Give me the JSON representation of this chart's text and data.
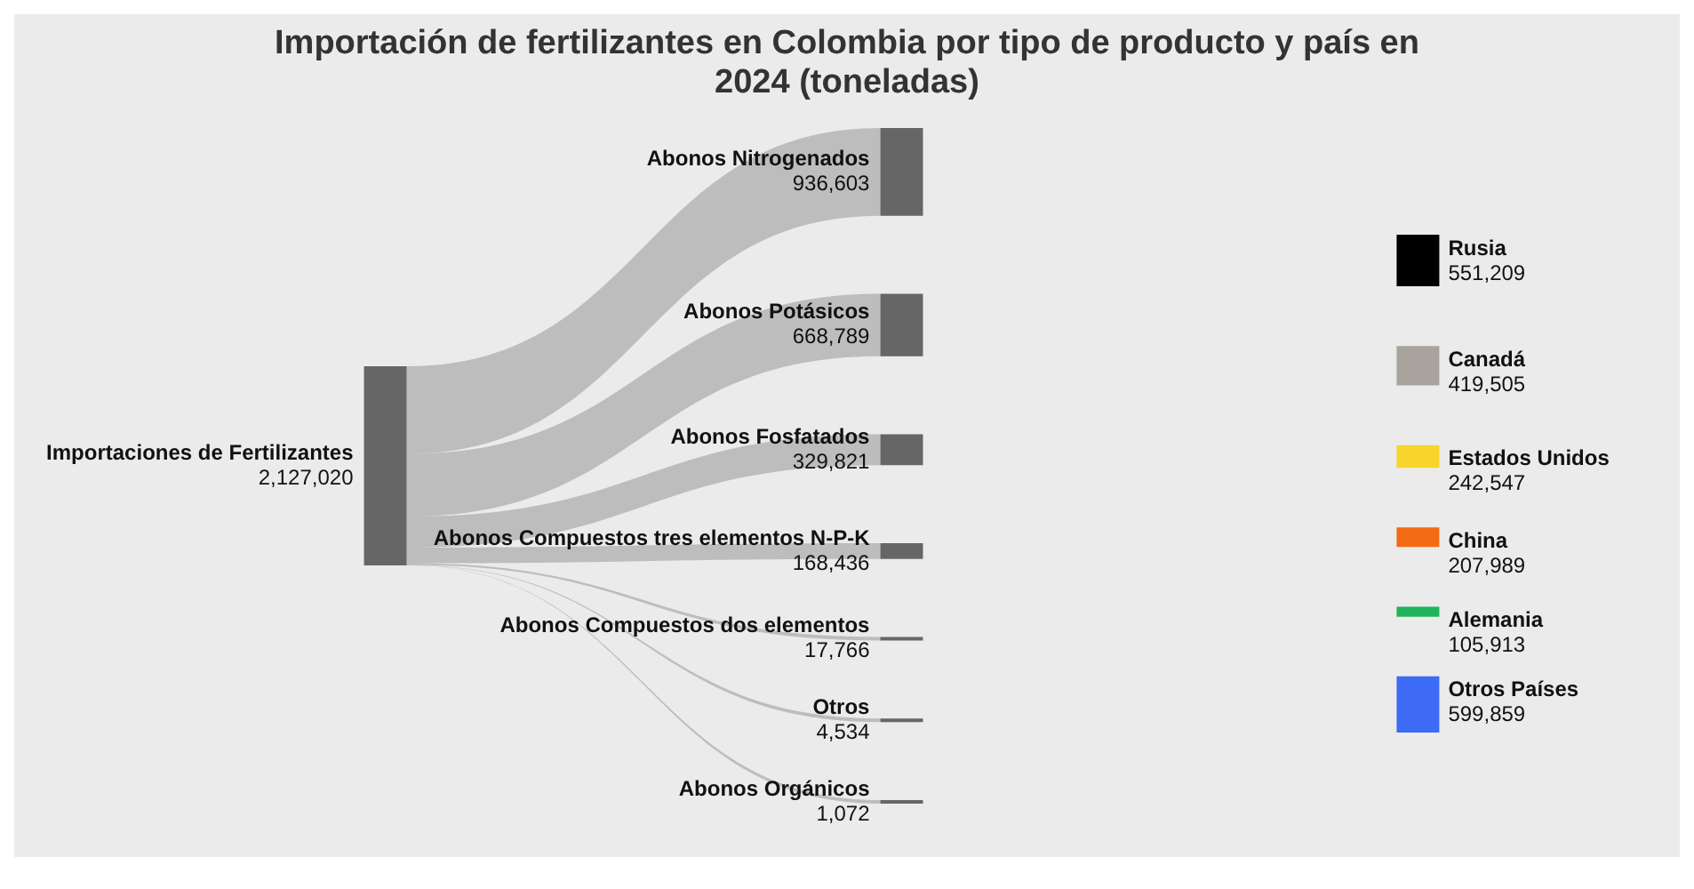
{
  "chart_data": {
    "type": "other",
    "title": "Importación de fertilizantes en Colombia por tipo de producto y país en 2024 (toneladas)",
    "categories": [
      "Importaciones de Fertilizantes",
      "Abonos Nitrogenados",
      "Abonos Potásicos",
      "Abonos Fosfatados",
      "Abonos Compuestos tres elementos N-P-K",
      "Abonos Compuestos dos elementos",
      "Otros",
      "Abonos Orgánicos",
      "Rusia",
      "Canadá",
      "Estados Unidos",
      "China",
      "Alemania",
      "Otros Países"
    ],
    "series": [
      {
        "color": "#666666",
        "values": [
          2127020,
          null,
          null,
          null,
          null,
          null,
          null,
          null,
          null,
          null,
          null,
          null,
          null,
          null
        ],
        "value_labels": [
          "2,127,020",
          null,
          null,
          null,
          null,
          null,
          null,
          null,
          null,
          null,
          null,
          null,
          null,
          null
        ]
      },
      {
        "color": "#666666",
        "values": [
          null,
          936603,
          668789,
          329821,
          168436,
          17766,
          4534,
          1072,
          null,
          null,
          null,
          null,
          null,
          null
        ],
        "value_labels": [
          null,
          "936,603",
          "668,789",
          "329,821",
          "168,436",
          "17,766",
          "4,534",
          "1,072",
          null,
          null,
          null,
          null,
          null,
          null
        ]
      },
      {
        "colors": [
          null,
          null,
          null,
          null,
          null,
          null,
          null,
          null,
          "#000000",
          "#a8a39d",
          "#f7d52a",
          "#f26b12",
          "#1fb35a",
          "#3d6bf5"
        ],
        "values": [
          null,
          null,
          null,
          null,
          null,
          null,
          null,
          null,
          551209,
          419505,
          242547,
          207989,
          105913,
          599859
        ],
        "value_labels": [
          null,
          null,
          null,
          null,
          null,
          null,
          null,
          null,
          "551,209",
          "419,505",
          "242,547",
          "207,989",
          "105,913",
          "599,859"
        ]
      }
    ]
  }
}
